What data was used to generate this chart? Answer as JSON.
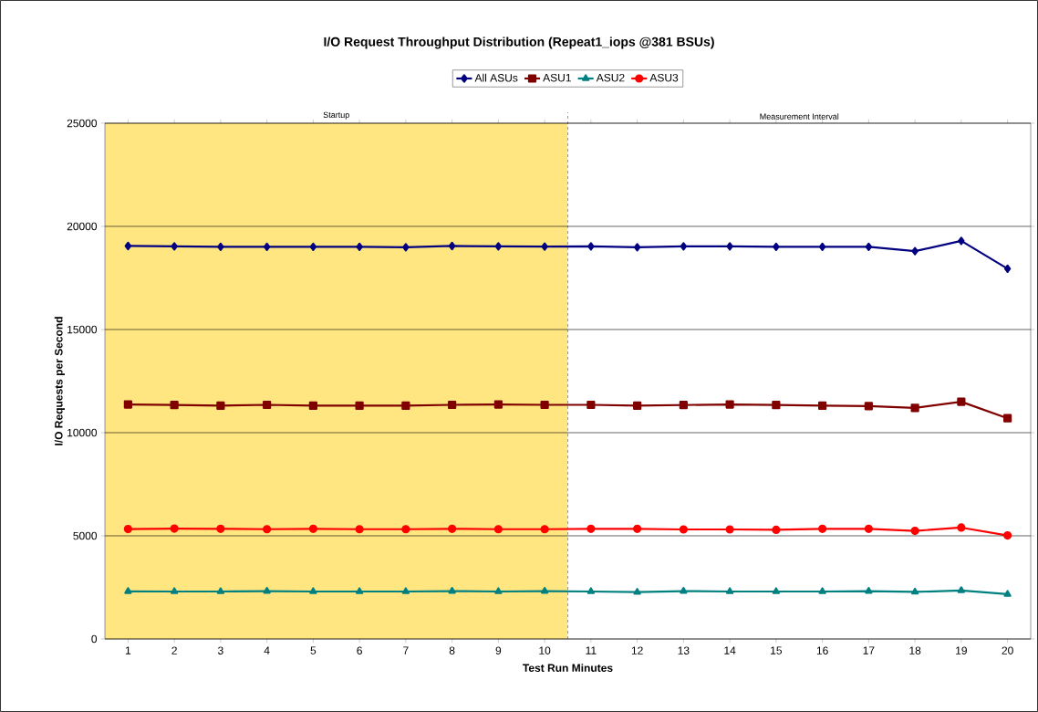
{
  "chart_data": {
    "type": "line",
    "title": "I/O Request Throughput Distribution (Repeat1_iops @381 BSUs)",
    "xlabel": "Test Run Minutes",
    "ylabel": "I/O Requests per Second",
    "x": [
      1,
      2,
      3,
      4,
      5,
      6,
      7,
      8,
      9,
      10,
      11,
      12,
      13,
      14,
      15,
      16,
      17,
      18,
      19,
      20
    ],
    "xlim": [
      0.5,
      20.5
    ],
    "xticks": [
      1,
      2,
      3,
      4,
      5,
      6,
      7,
      8,
      9,
      10,
      11,
      12,
      13,
      14,
      15,
      16,
      17,
      18,
      19,
      20
    ],
    "ylim": [
      0,
      25000
    ],
    "yticks": [
      0,
      5000,
      10000,
      15000,
      20000,
      25000
    ],
    "grid": "y",
    "legend": "top",
    "series": [
      {
        "name": "All ASUs",
        "color": "#000080",
        "marker": "diamond",
        "values": [
          19050,
          19030,
          19010,
          19010,
          19010,
          19010,
          18990,
          19050,
          19030,
          19020,
          19030,
          18990,
          19030,
          19030,
          19010,
          19010,
          19010,
          18800,
          19300,
          17950
        ]
      },
      {
        "name": "ASU1",
        "color": "#800000",
        "marker": "square",
        "values": [
          11370,
          11340,
          11310,
          11350,
          11310,
          11310,
          11310,
          11350,
          11370,
          11350,
          11350,
          11310,
          11340,
          11370,
          11340,
          11310,
          11290,
          11200,
          11500,
          10700
        ]
      },
      {
        "name": "ASU2",
        "color": "#008080",
        "marker": "triangle",
        "values": [
          2310,
          2300,
          2300,
          2320,
          2300,
          2300,
          2300,
          2320,
          2300,
          2320,
          2300,
          2270,
          2320,
          2300,
          2300,
          2300,
          2320,
          2280,
          2350,
          2170
        ]
      },
      {
        "name": "ASU3",
        "color": "#ff0000",
        "marker": "circle",
        "values": [
          5330,
          5350,
          5340,
          5320,
          5340,
          5320,
          5320,
          5340,
          5320,
          5320,
          5340,
          5340,
          5310,
          5310,
          5290,
          5340,
          5340,
          5240,
          5400,
          5020
        ]
      }
    ],
    "bands": [
      {
        "axis": "x",
        "from": 0.5,
        "to": 10.5,
        "label": "Startup",
        "color": "#ffe680"
      },
      {
        "axis": "x",
        "from": 10.5,
        "to": 20.5,
        "label": "Measurement Interval",
        "color": "#ffffff"
      }
    ],
    "ref_lines": [
      {
        "axis": "x",
        "value": 10.5,
        "line_style": "dashed"
      }
    ]
  }
}
